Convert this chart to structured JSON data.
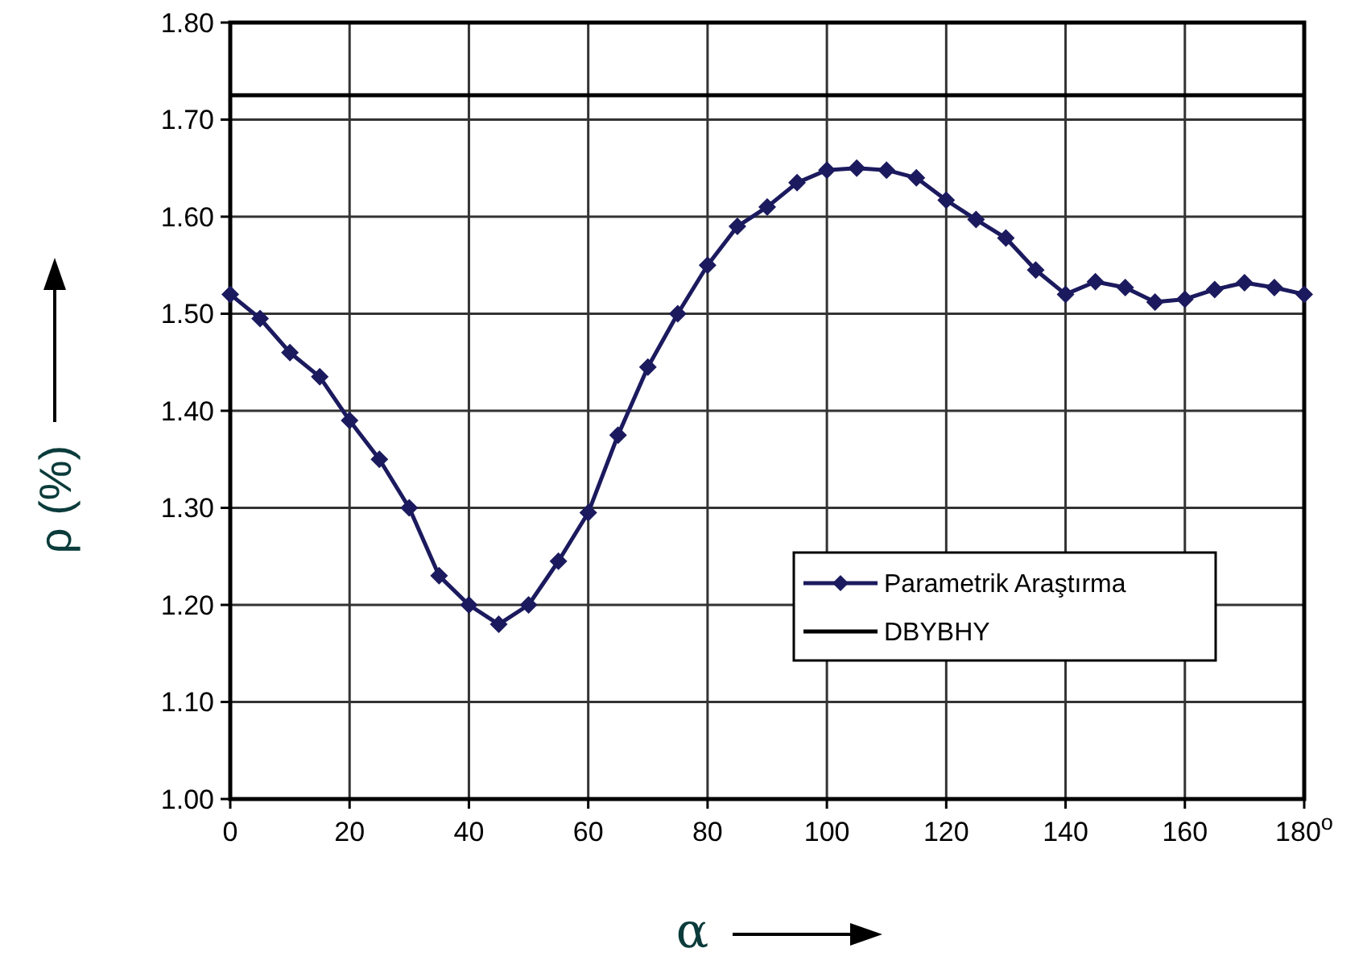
{
  "chart_data": {
    "type": "line",
    "xlabel": "α",
    "ylabel": "ρ (%)",
    "xlim": [
      0,
      180
    ],
    "xticks": [
      0,
      20,
      40,
      60,
      80,
      100,
      120,
      140,
      160,
      {
        "value": 180,
        "label": "180$^{o}$"
      }
    ],
    "ylim": [
      1.0,
      1.8
    ],
    "yticks": [
      {
        "value": 1.0,
        "label": "1.00"
      },
      {
        "value": 1.1,
        "label": "1.10"
      },
      {
        "value": 1.2,
        "label": "1.20"
      },
      {
        "value": 1.3,
        "label": "1.30"
      },
      {
        "value": 1.4,
        "label": "1.40"
      },
      {
        "value": 1.5,
        "label": "1.50"
      },
      {
        "value": 1.6,
        "label": "1.60"
      },
      {
        "value": 1.7,
        "label": "1.70"
      },
      {
        "value": 1.8,
        "label": "1.80"
      }
    ],
    "grid": true,
    "legend": "bottom right",
    "series": [
      {
        "name": "Parametrik Araştırma",
        "color": "#1c1a5e",
        "marker": "diamond",
        "x": [
          0,
          5,
          10,
          15,
          20,
          25,
          30,
          35,
          40,
          45,
          50,
          55,
          60,
          65,
          70,
          75,
          80,
          85,
          90,
          95,
          100,
          105,
          110,
          115,
          120,
          125,
          130,
          135,
          140,
          145,
          150,
          155,
          160,
          165,
          170,
          175,
          180
        ],
        "values": [
          1.52,
          1.495,
          1.46,
          1.435,
          1.39,
          1.35,
          1.3,
          1.23,
          1.2,
          1.18,
          1.2,
          1.245,
          1.295,
          1.375,
          1.445,
          1.5,
          1.55,
          1.59,
          1.61,
          1.635,
          1.648,
          1.65,
          1.648,
          1.64,
          1.617,
          1.597,
          1.578,
          1.545,
          1.52,
          1.533,
          1.527,
          1.512,
          1.515,
          1.525,
          1.532,
          1.527,
          1.52
        ]
      },
      {
        "name": "DBYBHY",
        "color": "#000000",
        "marker": "none",
        "x": [
          0,
          180
        ],
        "values": [
          1.725,
          1.725
        ]
      }
    ]
  }
}
